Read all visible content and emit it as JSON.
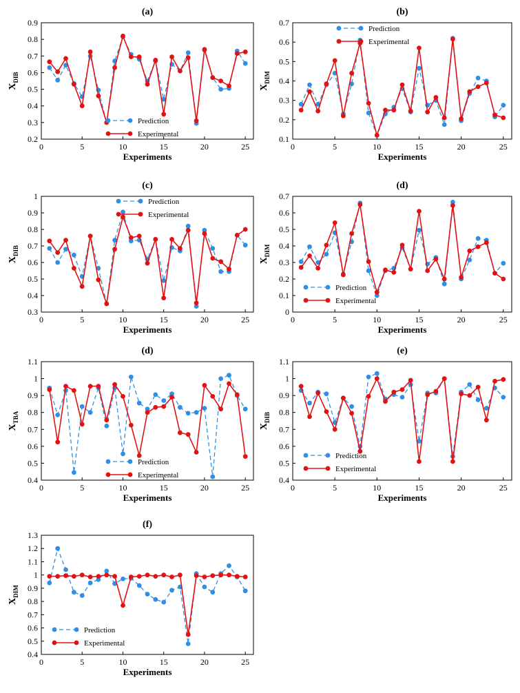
{
  "colors": {
    "prediction": "#2f8fe6",
    "experimental": "#e31212",
    "axis": "#000000"
  },
  "chart_data": [
    {
      "type": "line",
      "title": "(a)",
      "xlabel": "Experiments",
      "ylabel_main": "X",
      "ylabel_sub": "DIB",
      "xlim": [
        0,
        26
      ],
      "xticks": [
        0,
        5,
        10,
        15,
        20,
        25
      ],
      "ylim": [
        0.2,
        0.9
      ],
      "yticks": [
        "0.2",
        "0.3",
        "0.4",
        "0.5",
        "0.6",
        "0.7",
        "0.8",
        "0.9"
      ],
      "legend_position": "bottom-center",
      "x": [
        1,
        2,
        3,
        4,
        5,
        6,
        7,
        8,
        9,
        10,
        11,
        12,
        13,
        14,
        15,
        16,
        17,
        18,
        19,
        20,
        21,
        22,
        23,
        24,
        25
      ],
      "series": [
        {
          "name": "Prediction",
          "style": "dashed",
          "values": [
            0.63,
            0.555,
            0.645,
            0.535,
            0.455,
            0.7,
            0.495,
            0.3,
            0.67,
            0.815,
            0.71,
            0.68,
            0.55,
            0.67,
            0.44,
            0.65,
            0.61,
            0.72,
            0.295,
            0.735,
            0.57,
            0.5,
            0.505,
            0.73,
            0.655
          ]
        },
        {
          "name": "Experimental",
          "style": "solid",
          "values": [
            0.665,
            0.605,
            0.685,
            0.53,
            0.4,
            0.725,
            0.46,
            0.3,
            0.63,
            0.82,
            0.695,
            0.695,
            0.53,
            0.675,
            0.35,
            0.695,
            0.61,
            0.69,
            0.31,
            0.74,
            0.57,
            0.55,
            0.52,
            0.715,
            0.725
          ]
        }
      ]
    },
    {
      "type": "line",
      "title": "(b)",
      "xlabel": "Experiments",
      "ylabel_main": "X",
      "ylabel_sub": "DIM",
      "xlim": [
        0,
        26
      ],
      "xticks": [
        0,
        5,
        10,
        15,
        20,
        25
      ],
      "ylim": [
        0.1,
        0.7
      ],
      "yticks": [
        "0.1",
        "0.2",
        "0.3",
        "0.4",
        "0.5",
        "0.6",
        "0.7"
      ],
      "legend_position": "top-center",
      "x": [
        1,
        2,
        3,
        4,
        5,
        6,
        7,
        8,
        9,
        10,
        11,
        12,
        13,
        14,
        15,
        16,
        17,
        18,
        19,
        20,
        21,
        22,
        23,
        24,
        25
      ],
      "series": [
        {
          "name": "Prediction",
          "style": "dashed",
          "values": [
            0.28,
            0.38,
            0.28,
            0.38,
            0.44,
            0.23,
            0.385,
            0.61,
            0.235,
            0.12,
            0.23,
            0.265,
            0.36,
            0.24,
            0.465,
            0.275,
            0.3,
            0.175,
            0.62,
            0.195,
            0.335,
            0.415,
            0.4,
            0.215,
            0.275
          ]
        },
        {
          "name": "Experimental",
          "style": "solid",
          "values": [
            0.25,
            0.345,
            0.245,
            0.385,
            0.505,
            0.22,
            0.44,
            0.595,
            0.285,
            0.12,
            0.25,
            0.25,
            0.38,
            0.245,
            0.57,
            0.24,
            0.315,
            0.21,
            0.615,
            0.205,
            0.345,
            0.37,
            0.39,
            0.225,
            0.21
          ]
        }
      ]
    },
    {
      "type": "line",
      "title": "(c)",
      "xlabel": "Experiments",
      "ylabel_main": "X",
      "ylabel_sub": "DIB",
      "xlim": [
        0,
        26
      ],
      "xticks": [
        0,
        5,
        10,
        15,
        20,
        25
      ],
      "ylim": [
        0.3,
        1.0
      ],
      "yticks": [
        "0.3",
        "0.4",
        "0.5",
        "0.6",
        "0.7",
        "0.8",
        "0.9",
        "1"
      ],
      "legend_position": "top-right",
      "x": [
        1,
        2,
        3,
        4,
        5,
        6,
        7,
        8,
        9,
        10,
        11,
        12,
        13,
        14,
        15,
        16,
        17,
        18,
        19,
        20,
        21,
        22,
        23,
        24,
        25
      ],
      "series": [
        {
          "name": "Prediction",
          "style": "dashed",
          "values": [
            0.685,
            0.6,
            0.68,
            0.645,
            0.515,
            0.76,
            0.565,
            0.35,
            0.735,
            0.905,
            0.73,
            0.735,
            0.62,
            0.74,
            0.49,
            0.69,
            0.67,
            0.82,
            0.335,
            0.795,
            0.685,
            0.545,
            0.545,
            0.765,
            0.705
          ]
        },
        {
          "name": "Experimental",
          "style": "solid",
          "values": [
            0.73,
            0.66,
            0.735,
            0.565,
            0.455,
            0.76,
            0.495,
            0.35,
            0.68,
            0.875,
            0.75,
            0.76,
            0.595,
            0.74,
            0.385,
            0.74,
            0.685,
            0.795,
            0.355,
            0.775,
            0.625,
            0.605,
            0.56,
            0.765,
            0.8
          ]
        }
      ]
    },
    {
      "type": "line",
      "title": "(d)",
      "xlabel": "Experiments",
      "ylabel_main": "X",
      "ylabel_sub": "DIM",
      "xlim": [
        0,
        26
      ],
      "xticks": [
        0,
        5,
        10,
        15,
        20,
        25
      ],
      "ylim": [
        0,
        0.7
      ],
      "yticks": [
        "0",
        "0.1",
        "0.2",
        "0.3",
        "0.4",
        "0.5",
        "0.6",
        "0.7"
      ],
      "legend_position": "bottom-left",
      "x": [
        1,
        2,
        3,
        4,
        5,
        6,
        7,
        8,
        9,
        10,
        11,
        12,
        13,
        14,
        15,
        16,
        17,
        18,
        19,
        20,
        21,
        22,
        23,
        24,
        25
      ],
      "series": [
        {
          "name": "Prediction",
          "style": "dashed",
          "values": [
            0.305,
            0.395,
            0.3,
            0.35,
            0.48,
            0.23,
            0.425,
            0.66,
            0.25,
            0.1,
            0.25,
            0.265,
            0.39,
            0.26,
            0.495,
            0.29,
            0.33,
            0.17,
            0.665,
            0.2,
            0.315,
            0.445,
            0.435,
            0.235,
            0.295
          ]
        },
        {
          "name": "Experimental",
          "style": "solid",
          "values": [
            0.27,
            0.34,
            0.265,
            0.405,
            0.54,
            0.225,
            0.475,
            0.65,
            0.305,
            0.12,
            0.255,
            0.24,
            0.405,
            0.26,
            0.61,
            0.25,
            0.32,
            0.2,
            0.645,
            0.21,
            0.37,
            0.395,
            0.42,
            0.235,
            0.2
          ]
        }
      ]
    },
    {
      "type": "line",
      "title": "(d)",
      "xlabel": "Experiments",
      "ylabel_main": "X",
      "ylabel_sub": "TBA",
      "xlim": [
        0,
        26
      ],
      "xticks": [
        0,
        5,
        10,
        15,
        20,
        25
      ],
      "ylim": [
        0.4,
        1.1
      ],
      "yticks": [
        "0.4",
        "0.5",
        "0.6",
        "0.7",
        "0.8",
        "0.9",
        "1",
        "1.1"
      ],
      "legend_position": "bottom-center",
      "x": [
        1,
        2,
        3,
        4,
        5,
        6,
        7,
        8,
        9,
        10,
        11,
        12,
        13,
        14,
        15,
        16,
        17,
        18,
        19,
        20,
        21,
        22,
        23,
        24,
        25
      ],
      "series": [
        {
          "name": "Prediction",
          "style": "dashed",
          "values": [
            0.945,
            0.785,
            0.93,
            0.445,
            0.835,
            0.8,
            0.945,
            0.72,
            0.945,
            0.555,
            1.01,
            0.855,
            0.82,
            0.905,
            0.87,
            0.91,
            0.83,
            0.795,
            0.8,
            0.825,
            0.42,
            1.0,
            1.02,
            0.9,
            0.82
          ]
        },
        {
          "name": "Experimental",
          "style": "solid",
          "values": [
            0.935,
            0.625,
            0.955,
            0.93,
            0.73,
            0.955,
            0.955,
            0.755,
            0.965,
            0.895,
            0.725,
            0.545,
            0.8,
            0.83,
            0.835,
            0.89,
            0.68,
            0.67,
            0.565,
            0.96,
            0.895,
            0.82,
            0.97,
            0.905,
            0.54
          ]
        }
      ]
    },
    {
      "type": "line",
      "title": "(e)",
      "xlabel": "Experiments",
      "ylabel_main": "X",
      "ylabel_sub": "DIB",
      "xlim": [
        0,
        26
      ],
      "xticks": [
        0,
        5,
        10,
        15,
        20,
        25
      ],
      "ylim": [
        0.4,
        1.1
      ],
      "yticks": [
        "0.4",
        "0.5",
        "0.6",
        "0.7",
        "0.8",
        "0.9",
        "1",
        "1.1"
      ],
      "legend_position": "bottom-left",
      "x": [
        1,
        2,
        3,
        4,
        5,
        6,
        7,
        8,
        9,
        10,
        11,
        12,
        13,
        14,
        15,
        16,
        17,
        18,
        19,
        20,
        21,
        22,
        23,
        24,
        25
      ],
      "series": [
        {
          "name": "Prediction",
          "style": "dashed",
          "values": [
            0.93,
            0.855,
            0.92,
            0.91,
            0.74,
            0.885,
            0.835,
            0.6,
            1.01,
            1.03,
            0.88,
            0.905,
            0.89,
            0.965,
            0.63,
            0.915,
            0.915,
            1.0,
            0.54,
            0.92,
            0.965,
            0.875,
            0.825,
            0.945,
            0.89
          ]
        },
        {
          "name": "Experimental",
          "style": "solid",
          "values": [
            0.955,
            0.775,
            0.915,
            0.805,
            0.7,
            0.885,
            0.795,
            0.57,
            0.895,
            1.0,
            0.865,
            0.92,
            0.935,
            0.99,
            0.51,
            0.905,
            0.925,
            1.0,
            0.51,
            0.91,
            0.9,
            0.95,
            0.755,
            0.985,
            0.995
          ]
        }
      ]
    },
    {
      "type": "line",
      "title": "(f)",
      "xlabel": "Experiments",
      "ylabel_main": "X",
      "ylabel_sub": "DIM",
      "xlim": [
        0,
        26
      ],
      "xticks": [
        0,
        5,
        10,
        15,
        20,
        25
      ],
      "ylim": [
        0.4,
        1.3
      ],
      "yticks": [
        "0.4",
        "0.5",
        "0.6",
        "0.7",
        "0.8",
        "0.9",
        "1",
        "1.1",
        "1.2",
        "1.3"
      ],
      "legend_position": "bottom-left",
      "x": [
        1,
        2,
        3,
        4,
        5,
        6,
        7,
        8,
        9,
        10,
        11,
        12,
        13,
        14,
        15,
        16,
        17,
        18,
        19,
        20,
        21,
        22,
        23,
        24,
        25
      ],
      "series": [
        {
          "name": "Prediction",
          "style": "dashed",
          "values": [
            0.94,
            1.2,
            1.04,
            0.87,
            0.845,
            0.94,
            0.965,
            1.03,
            0.935,
            0.97,
            0.975,
            0.92,
            0.855,
            0.815,
            0.795,
            0.885,
            0.91,
            0.48,
            1.01,
            0.91,
            0.87,
            1.01,
            1.07,
            0.985,
            0.88
          ]
        },
        {
          "name": "Experimental",
          "style": "solid",
          "values": [
            0.99,
            0.99,
            0.995,
            0.99,
            1.0,
            0.985,
            0.99,
            1.0,
            0.99,
            0.77,
            0.985,
            0.99,
            1.0,
            0.99,
            1.0,
            0.985,
            1.0,
            0.55,
            0.995,
            0.985,
            0.995,
            1.0,
            1.0,
            0.99,
            0.985
          ]
        }
      ]
    }
  ]
}
